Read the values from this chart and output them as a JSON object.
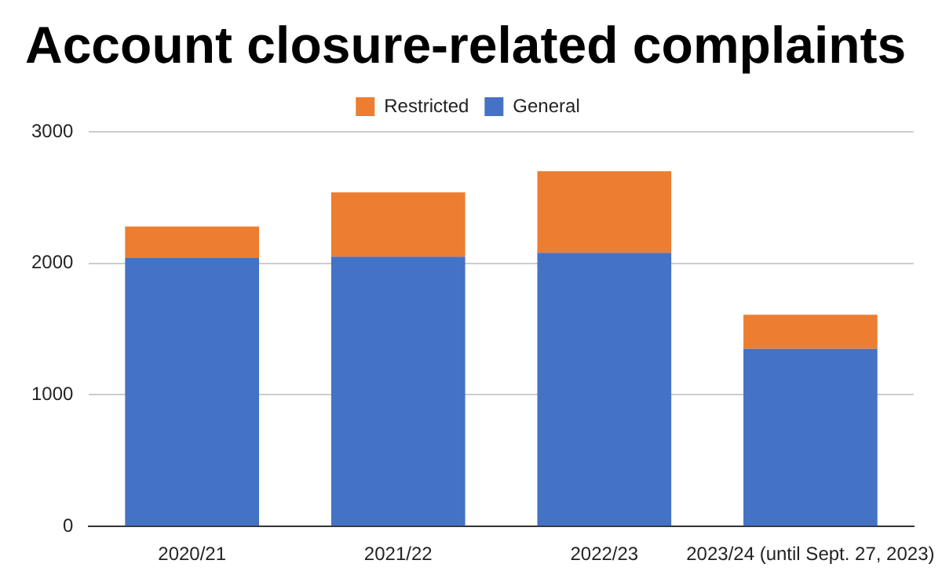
{
  "chart_data": {
    "type": "bar",
    "title": "Account closure-related complaints",
    "stacked": true,
    "categories": [
      "2020/21",
      "2021/22",
      "2022/23",
      "2023/24 (until Sept. 27, 2023)"
    ],
    "series": [
      {
        "name": "General",
        "color": "#4472c4",
        "values": [
          2040,
          2050,
          2080,
          1350
        ]
      },
      {
        "name": "Restricted",
        "color": "#ed7d31",
        "values": [
          240,
          490,
          620,
          260
        ]
      }
    ],
    "ylim": [
      0,
      3000
    ],
    "yticks": [
      0,
      1000,
      2000,
      3000
    ],
    "grid": "y",
    "legend": "top"
  }
}
